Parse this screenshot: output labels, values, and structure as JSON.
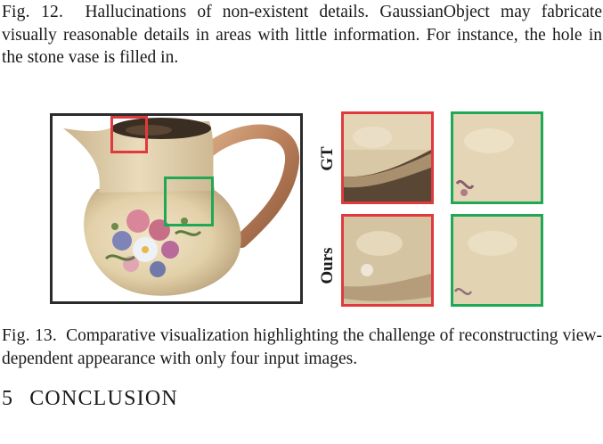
{
  "fig12": {
    "label": "Fig. 12.",
    "text": "Hallucinations of non-existent details. GaussianObject may fabricate visually reasonable details in areas with little information. For instance, the hole in the stone vase is filled in."
  },
  "figure": {
    "row_labels": [
      "GT",
      "Ours"
    ],
    "colors": {
      "red": "#e03a3e",
      "green": "#1fa855",
      "frame": "#2b2b2b",
      "vase": "#e6d6b3"
    }
  },
  "fig13": {
    "label": "Fig. 13.",
    "text": "Comparative visualization highlighting the challenge of reconstructing view-dependent appearance with only four input images."
  },
  "section": {
    "number": "5",
    "title": "CONCLUSION"
  }
}
